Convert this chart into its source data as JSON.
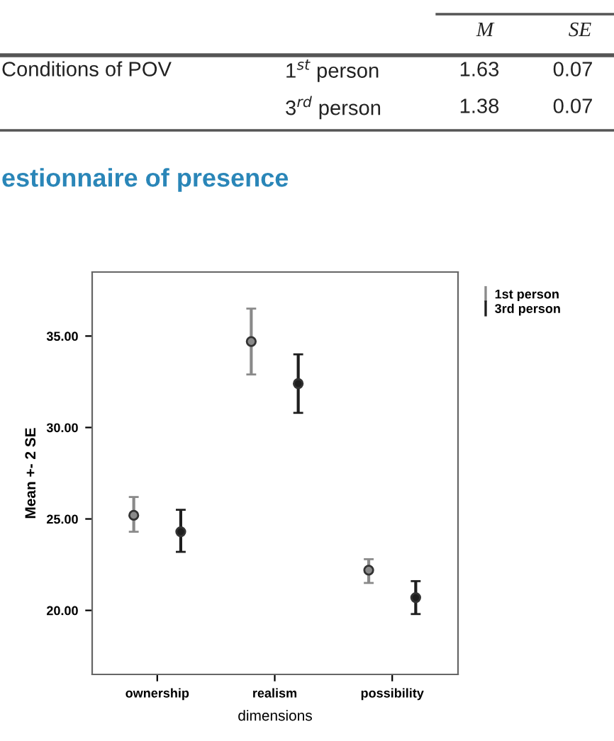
{
  "chart_data": {
    "type": "scatter",
    "xlabel": "dimensions",
    "ylabel": "Mean +- 2 SE",
    "categories": [
      "ownership",
      "realism",
      "possibility"
    ],
    "series": [
      {
        "name": "1st person",
        "color": "#8a8a8a",
        "values": [
          25.2,
          34.7,
          22.2
        ],
        "errors": [
          [
            24.3,
            26.2
          ],
          [
            32.9,
            36.5
          ],
          [
            21.5,
            22.8
          ]
        ]
      },
      {
        "name": "3rd person",
        "color": "#1e1e1e",
        "values": [
          24.3,
          32.4,
          20.7
        ],
        "errors": [
          [
            23.2,
            25.5
          ],
          [
            30.8,
            34.0
          ],
          [
            19.8,
            21.6
          ]
        ]
      }
    ],
    "ylim": [
      16.5,
      38.5
    ],
    "yticks": [
      {
        "value": 20,
        "label": "20.00"
      },
      {
        "value": 25,
        "label": "25.00"
      },
      {
        "value": 30,
        "label": "30.00"
      },
      {
        "value": 35,
        "label": "35.00"
      }
    ],
    "marker": "circle",
    "grid": false,
    "legend": "top right",
    "annotations": [
      "M",
      "SE",
      "Conditions of POV",
      "1$^{st}$ person",
      "1.63",
      "0.07",
      "3$^{rd}$ person",
      "1.38",
      "0.07",
      "estionnaire of presence"
    ]
  }
}
